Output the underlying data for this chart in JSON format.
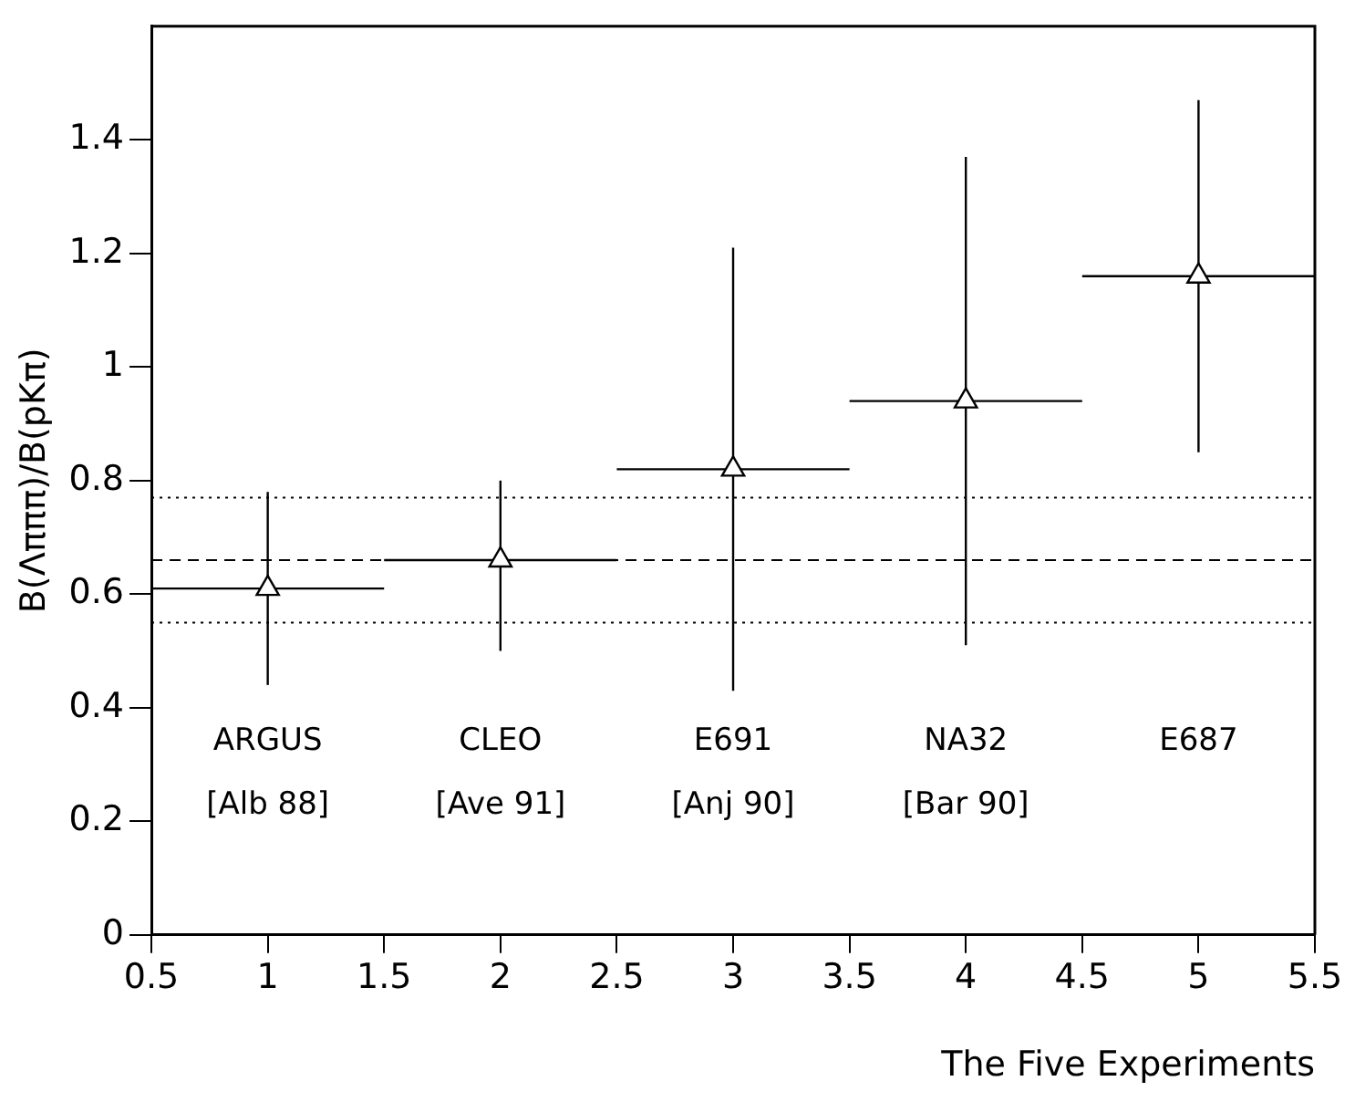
{
  "chart_data": {
    "type": "scatter",
    "xlabel": "The Five Experiments",
    "ylabel": "B(Λπππ)/B(pKπ)",
    "xlim": [
      0.5,
      5.5
    ],
    "xticks": [
      0.5,
      1,
      1.5,
      2,
      2.5,
      3,
      3.5,
      4,
      4.5,
      5,
      5.5
    ],
    "ylim": [
      0,
      1.6
    ],
    "yticks": [
      0,
      0.2,
      0.4,
      0.6,
      0.8,
      1,
      1.2,
      1.4
    ],
    "grid": false,
    "legend": false,
    "marker": "triangle",
    "series": [
      {
        "color": "#000000",
        "x": [
          1,
          2,
          3,
          4,
          5
        ],
        "values": [
          0.61,
          0.66,
          0.82,
          0.94,
          1.16
        ],
        "errors": [
          [
            0.44,
            0.78
          ],
          [
            0.5,
            0.8
          ],
          [
            0.43,
            1.21
          ],
          [
            0.51,
            1.37
          ],
          [
            0.85,
            1.47
          ]
        ],
        "xerrors": [
          0.5,
          0.5,
          0.5,
          0.5,
          0.5
        ]
      }
    ],
    "ref_lines": [
      {
        "axis": "y",
        "value": 0.77,
        "line_style": "dotted",
        "color": "#000000"
      },
      {
        "axis": "y",
        "value": 0.66,
        "line_style": "dashed",
        "color": "#000000"
      },
      {
        "axis": "y",
        "value": 0.55,
        "line_style": "dotted",
        "color": "#000000"
      }
    ],
    "annotations": [
      "ARGUS",
      "[Alb 88]",
      "CLEO",
      "[Ave 91]",
      "E691",
      "[Anj 90]",
      "NA32",
      "[Bar 90]",
      "E687"
    ]
  }
}
